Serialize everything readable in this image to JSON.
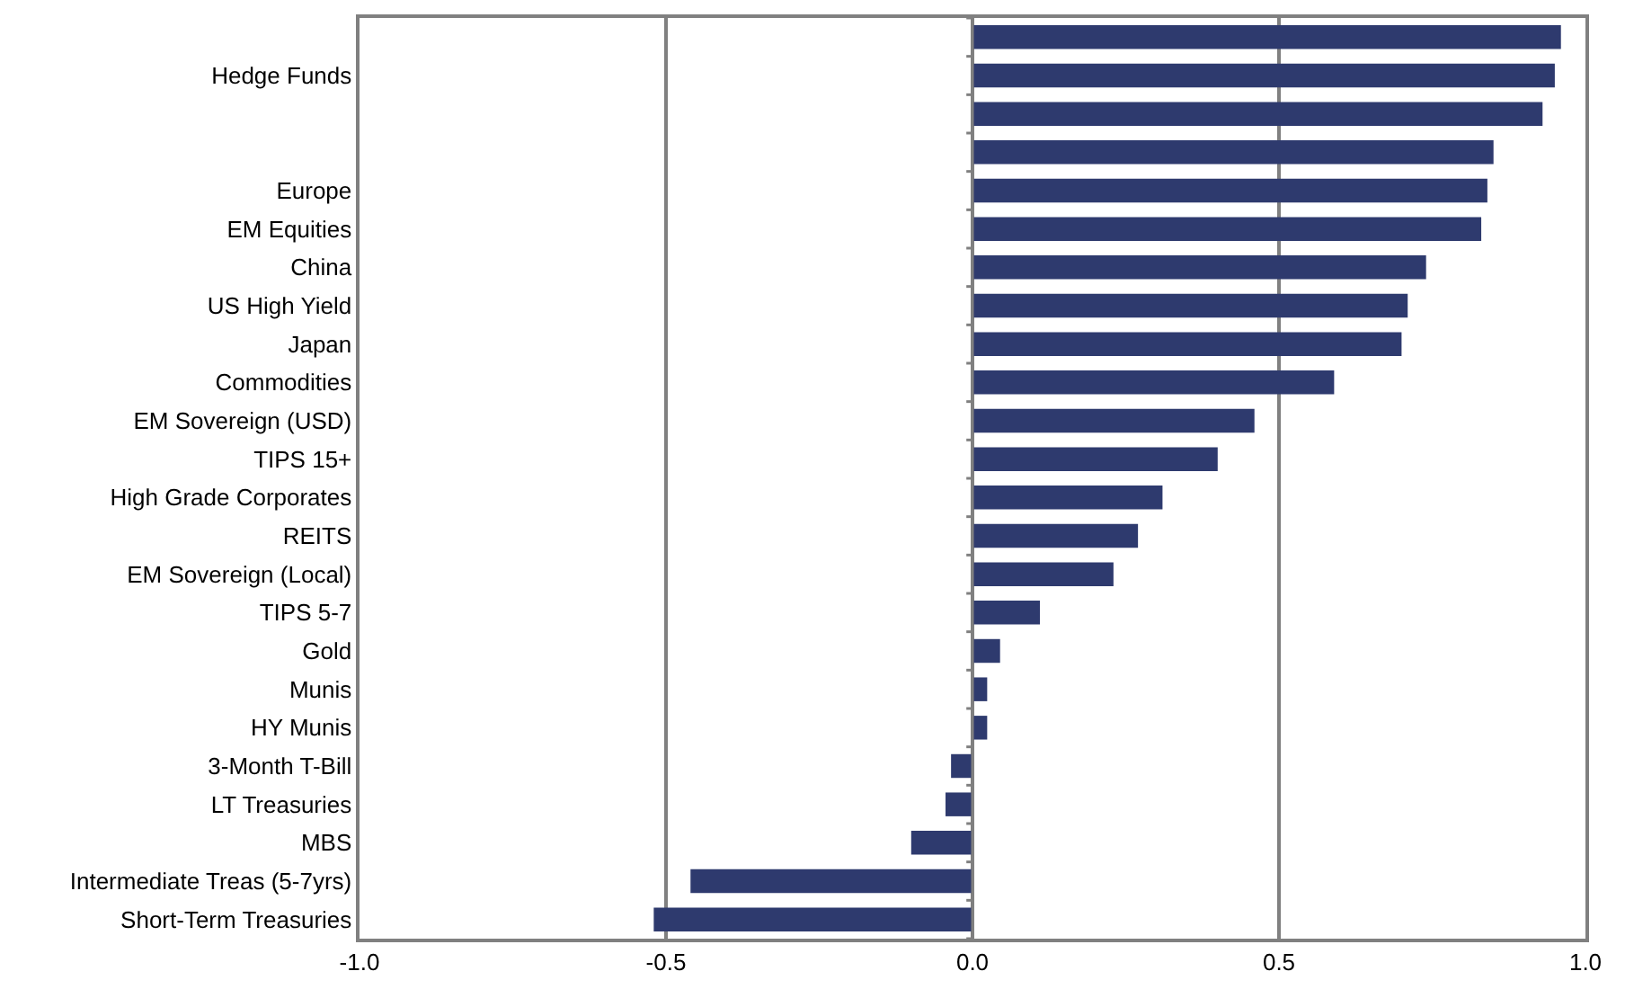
{
  "chart_data": {
    "type": "bar",
    "orientation": "horizontal",
    "categories": [
      null,
      "Hedge Funds",
      null,
      null,
      "Europe",
      "EM Equities",
      "China",
      "US High Yield",
      "Japan",
      "Commodities",
      "EM Sovereign (USD)",
      "TIPS 15+",
      "High Grade Corporates",
      "REITS",
      "EM Sovereign (Local)",
      "TIPS 5-7",
      "Gold",
      "Munis",
      "HY Munis",
      "3-Month T-Bill",
      "LT Treasuries",
      "MBS",
      "Intermediate Treas (5-7yrs)",
      "Short-Term Treasuries"
    ],
    "values": [
      0.96,
      0.95,
      0.93,
      0.85,
      0.84,
      0.83,
      0.74,
      0.71,
      0.7,
      0.59,
      0.46,
      0.4,
      0.31,
      0.27,
      0.23,
      0.11,
      0.045,
      0.024,
      0.024,
      -0.035,
      -0.044,
      -0.1,
      -0.46,
      -0.52
    ],
    "color": "#2e3a6e",
    "xlim": [
      -1.0,
      1.0
    ],
    "xticks": [
      {
        "value": -1.0,
        "label": "-1.0"
      },
      {
        "value": -0.5,
        "label": "-0.5"
      },
      {
        "value": 0.0,
        "label": "0.0"
      },
      {
        "value": 0.5,
        "label": "0.5"
      },
      {
        "value": 1.0,
        "label": "1.0"
      }
    ],
    "grid": "x"
  }
}
